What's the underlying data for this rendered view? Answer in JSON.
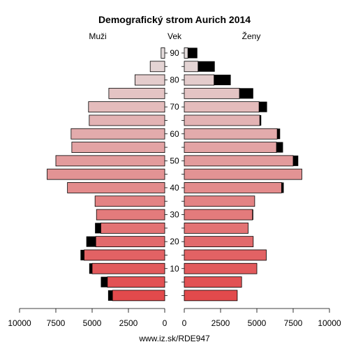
{
  "chart_data": {
    "type": "bar",
    "title": "Demografický strom Aurich 2014",
    "left_label": "Muži",
    "center_label": "Vek",
    "right_label": "Ženy",
    "source": "www.iz.sk/RDE947",
    "xlim": [
      0,
      10000
    ],
    "x_ticks": [
      10000,
      7500,
      5000,
      2500,
      0
    ],
    "x_ticks_right": [
      0,
      2500,
      5000,
      7500,
      10000
    ],
    "y_ticks": [
      10,
      20,
      30,
      40,
      50,
      60,
      70,
      80,
      90
    ],
    "categories": [
      "0-4",
      "5-9",
      "10-14",
      "15-19",
      "20-24",
      "25-29",
      "30-34",
      "35-39",
      "40-44",
      "45-49",
      "50-54",
      "55-59",
      "60-64",
      "65-69",
      "70-74",
      "75-79",
      "80-84",
      "85-89",
      "90+"
    ],
    "series": [
      {
        "name": "Muži",
        "values": [
          3600,
          3950,
          5000,
          5550,
          4750,
          4400,
          4700,
          4800,
          6700,
          8100,
          7500,
          6400,
          6450,
          5200,
          5250,
          3850,
          2050,
          1000,
          250
        ],
        "excess": [
          300,
          450,
          200,
          250,
          650,
          400,
          0,
          0,
          0,
          0,
          0,
          0,
          0,
          0,
          0,
          0,
          0,
          0,
          0
        ]
      },
      {
        "name": "Ženy",
        "values": [
          3650,
          3950,
          5000,
          5650,
          4750,
          4400,
          4700,
          4850,
          6700,
          8100,
          7500,
          6350,
          6400,
          5200,
          5150,
          3800,
          2050,
          950,
          250
        ],
        "excess": [
          0,
          0,
          0,
          0,
          0,
          0,
          50,
          0,
          150,
          0,
          350,
          450,
          200,
          100,
          550,
          950,
          1150,
          1150,
          650
        ]
      }
    ]
  }
}
